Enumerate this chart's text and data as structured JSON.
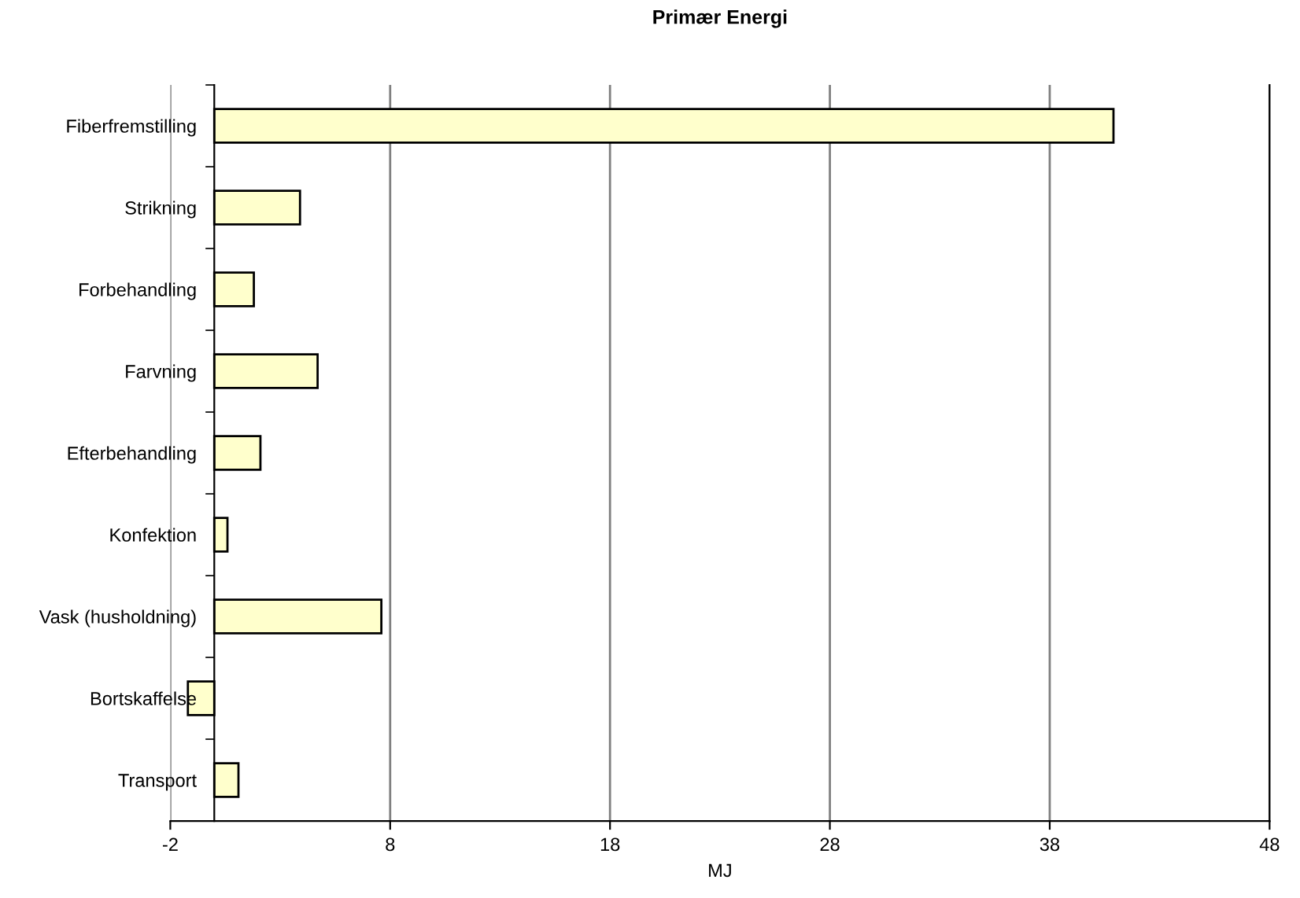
{
  "chart_data": {
    "type": "bar",
    "orientation": "horizontal",
    "title": "Primær Energi",
    "xlabel": "MJ",
    "categories": [
      "Fiberfremstilling",
      "Strikning",
      "Forbehandling",
      "Farvning",
      "Efterbehandling",
      "Konfektion",
      "Vask (husholdning)",
      "Bortskaffelse",
      "Transport"
    ],
    "values": [
      40.9,
      3.9,
      1.8,
      4.7,
      2.1,
      0.6,
      7.6,
      -1.2,
      1.1
    ],
    "color": "#ffffcc",
    "xlim": [
      -2,
      48
    ],
    "xticks": [
      -2,
      8,
      18,
      28,
      38,
      48
    ],
    "grid": "x",
    "legend": false
  }
}
